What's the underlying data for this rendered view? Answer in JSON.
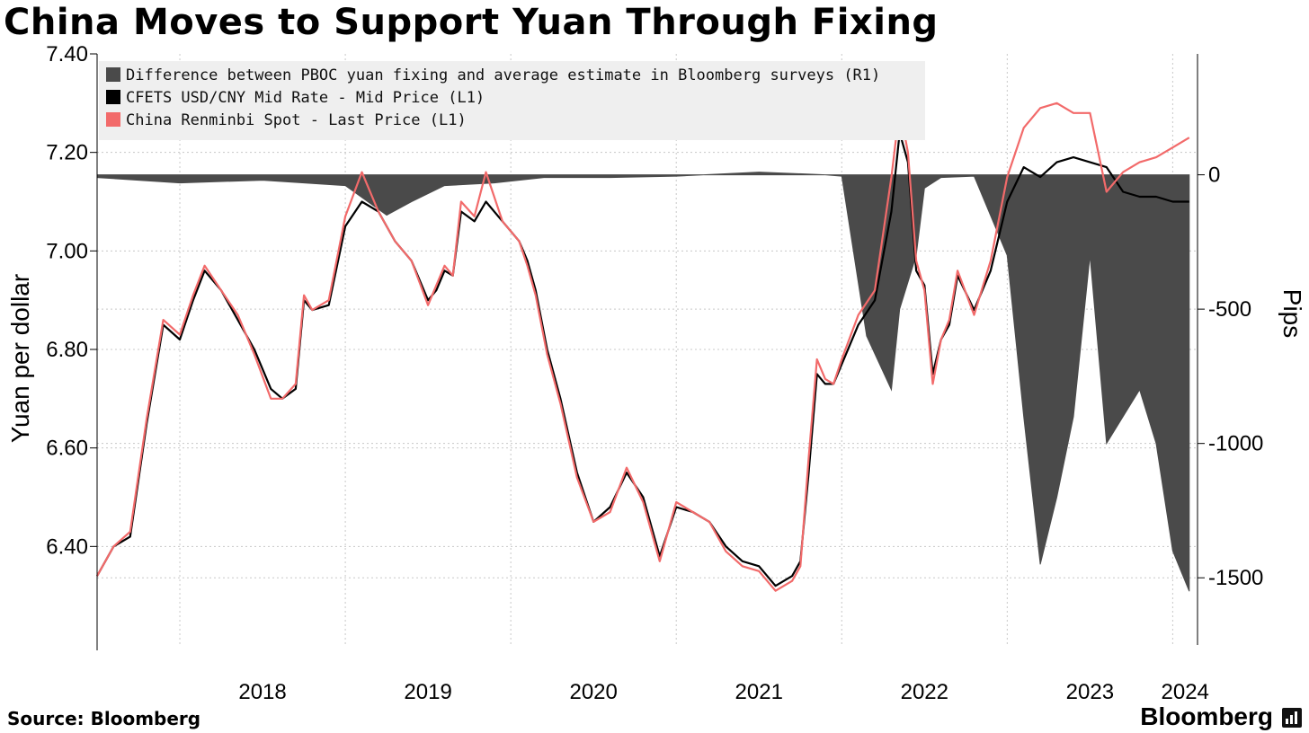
{
  "title": "China Moves to Support Yuan Through Fixing",
  "source": "Source: Bloomberg",
  "brand": "Bloomberg",
  "colors": {
    "fixing_diff": "#4a4a4a",
    "cfets": "#000000",
    "spot": "#f26a6a",
    "legend_bg": "#efefef",
    "grid": "#c8c8c8"
  },
  "legend": [
    {
      "label": "Difference between PBOC yuan fixing and average estimate in Bloomberg surveys (R1)",
      "color": "#4a4a4a"
    },
    {
      "label": "CFETS USD/CNY Mid Rate - Mid Price (L1)",
      "color": "#000000"
    },
    {
      "label": "China Renminbi Spot - Last Price (L1)",
      "color": "#f26a6a"
    }
  ],
  "chart_data": {
    "type": "line",
    "ylabel": "Yuan per dollar",
    "y2label": "Pips",
    "x_ticks": [
      "2018",
      "2019",
      "2020",
      "2021",
      "2022",
      "2023",
      "2024"
    ],
    "y_ticks": [
      "7.40",
      "7.20",
      "7.00",
      "6.80",
      "6.60",
      "6.40"
    ],
    "y2_ticks": [
      "0",
      "-500",
      "-1000",
      "-1500"
    ],
    "ylim": [
      6.2,
      7.4
    ],
    "y2lim": [
      -1750,
      450
    ],
    "xlim": [
      2017.5,
      2024.15
    ],
    "legend_position": "top-left",
    "grid": true,
    "series": [
      {
        "name": "CFETS USD/CNY Mid Rate - Mid Price (L1)",
        "axis": "left",
        "x": [
          2017.5,
          2017.6,
          2017.7,
          2017.8,
          2017.9,
          2018.0,
          2018.08,
          2018.15,
          2018.25,
          2018.35,
          2018.45,
          2018.55,
          2018.62,
          2018.7,
          2018.75,
          2018.8,
          2018.9,
          2019.0,
          2019.1,
          2019.2,
          2019.3,
          2019.4,
          2019.5,
          2019.55,
          2019.6,
          2019.65,
          2019.7,
          2019.78,
          2019.85,
          2019.95,
          2020.05,
          2020.1,
          2020.15,
          2020.22,
          2020.3,
          2020.4,
          2020.5,
          2020.6,
          2020.7,
          2020.8,
          2020.9,
          2021.0,
          2021.1,
          2021.2,
          2021.3,
          2021.4,
          2021.5,
          2021.6,
          2021.7,
          2021.75,
          2021.8,
          2021.85,
          2021.9,
          2021.95,
          2022.0,
          2022.1,
          2022.2,
          2022.3,
          2022.35,
          2022.4,
          2022.45,
          2022.5,
          2022.55,
          2022.6,
          2022.65,
          2022.7,
          2022.8,
          2022.9,
          2023.0,
          2023.1,
          2023.2,
          2023.3,
          2023.4,
          2023.5,
          2023.6,
          2023.7,
          2023.8,
          2023.9,
          2024.0,
          2024.1
        ],
        "values": [
          6.34,
          6.4,
          6.42,
          6.65,
          6.85,
          6.82,
          6.9,
          6.96,
          6.92,
          6.86,
          6.8,
          6.72,
          6.7,
          6.72,
          6.9,
          6.88,
          6.89,
          7.05,
          7.1,
          7.08,
          7.02,
          6.98,
          6.9,
          6.92,
          6.96,
          6.95,
          7.08,
          7.06,
          7.1,
          7.06,
          7.02,
          6.98,
          6.92,
          6.8,
          6.7,
          6.55,
          6.45,
          6.48,
          6.55,
          6.5,
          6.38,
          6.48,
          6.47,
          6.45,
          6.4,
          6.37,
          6.36,
          6.32,
          6.34,
          6.37,
          6.55,
          6.75,
          6.73,
          6.73,
          6.77,
          6.85,
          6.9,
          7.08,
          7.24,
          7.18,
          6.96,
          6.93,
          6.75,
          6.82,
          6.85,
          6.95,
          6.88,
          6.96,
          7.1,
          7.17,
          7.15,
          7.18,
          7.19,
          7.18,
          7.17,
          7.12,
          7.11,
          7.11,
          7.1,
          7.1
        ]
      },
      {
        "name": "China Renminbi Spot - Last Price (L1)",
        "axis": "left",
        "x": [
          2017.5,
          2017.6,
          2017.7,
          2017.8,
          2017.9,
          2018.0,
          2018.08,
          2018.15,
          2018.25,
          2018.35,
          2018.45,
          2018.55,
          2018.62,
          2018.7,
          2018.75,
          2018.8,
          2018.9,
          2019.0,
          2019.1,
          2019.2,
          2019.3,
          2019.4,
          2019.5,
          2019.55,
          2019.6,
          2019.65,
          2019.7,
          2019.78,
          2019.85,
          2019.95,
          2020.05,
          2020.1,
          2020.15,
          2020.22,
          2020.3,
          2020.4,
          2020.5,
          2020.6,
          2020.7,
          2020.8,
          2020.9,
          2021.0,
          2021.1,
          2021.2,
          2021.3,
          2021.4,
          2021.5,
          2021.6,
          2021.7,
          2021.75,
          2021.8,
          2021.85,
          2021.9,
          2021.95,
          2022.0,
          2022.1,
          2022.2,
          2022.3,
          2022.35,
          2022.4,
          2022.45,
          2022.5,
          2022.55,
          2022.6,
          2022.65,
          2022.7,
          2022.8,
          2022.9,
          2023.0,
          2023.1,
          2023.2,
          2023.3,
          2023.4,
          2023.5,
          2023.6,
          2023.7,
          2023.8,
          2023.9,
          2024.0,
          2024.1
        ],
        "values": [
          6.34,
          6.4,
          6.43,
          6.66,
          6.86,
          6.83,
          6.91,
          6.97,
          6.92,
          6.87,
          6.79,
          6.7,
          6.7,
          6.73,
          6.91,
          6.88,
          6.9,
          7.07,
          7.16,
          7.08,
          7.02,
          6.98,
          6.89,
          6.93,
          6.97,
          6.95,
          7.1,
          7.07,
          7.16,
          7.06,
          7.02,
          6.97,
          6.91,
          6.79,
          6.69,
          6.54,
          6.45,
          6.47,
          6.56,
          6.49,
          6.37,
          6.49,
          6.47,
          6.45,
          6.39,
          6.36,
          6.35,
          6.31,
          6.33,
          6.36,
          6.58,
          6.78,
          6.74,
          6.73,
          6.78,
          6.87,
          6.92,
          7.15,
          7.29,
          7.2,
          6.98,
          6.92,
          6.73,
          6.82,
          6.86,
          6.96,
          6.87,
          6.98,
          7.15,
          7.25,
          7.29,
          7.3,
          7.28,
          7.28,
          7.12,
          7.16,
          7.18,
          7.19,
          7.21,
          7.23
        ]
      },
      {
        "name": "Difference between PBOC yuan fixing and average estimate in Bloomberg surveys (R1)",
        "axis": "right",
        "x": [
          2017.5,
          2018.0,
          2018.5,
          2019.0,
          2019.25,
          2019.4,
          2019.6,
          2019.9,
          2020.2,
          2020.6,
          2021.0,
          2021.5,
          2021.9,
          2022.0,
          2022.15,
          2022.3,
          2022.35,
          2022.45,
          2022.5,
          2022.6,
          2022.8,
          2023.0,
          2023.1,
          2023.2,
          2023.3,
          2023.4,
          2023.5,
          2023.6,
          2023.7,
          2023.8,
          2023.9,
          2024.0,
          2024.1
        ],
        "values": [
          -10,
          -30,
          -20,
          -40,
          -150,
          -100,
          -40,
          -30,
          -10,
          -10,
          -5,
          10,
          0,
          -5,
          -600,
          -800,
          -500,
          -300,
          -50,
          -10,
          -5,
          -300,
          -900,
          -1450,
          -1200,
          -900,
          -300,
          -1000,
          -900,
          -800,
          -1000,
          -1400,
          -1550
        ]
      }
    ]
  }
}
